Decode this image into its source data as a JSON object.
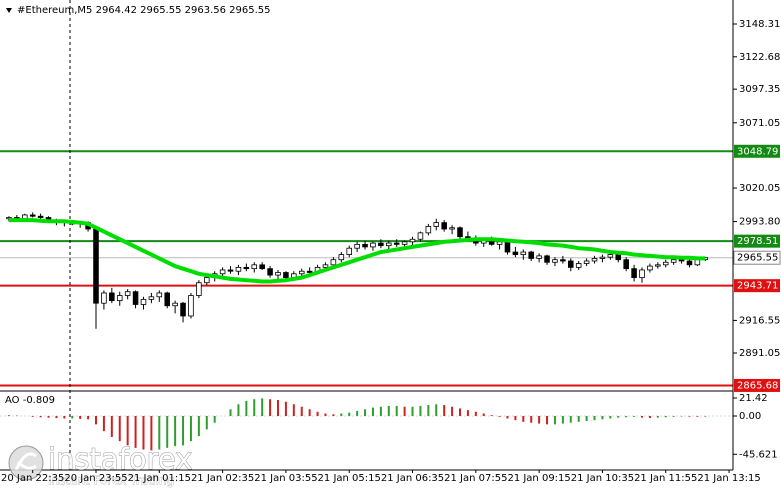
{
  "chart_data": {
    "type": "candlestick",
    "title": "#Ethereum,M5  2964.42 2965.55 2963.56 2965.55",
    "categories": [
      null,
      null,
      null,
      "20 Jan 22:35",
      null,
      null,
      null,
      null,
      null,
      null,
      null,
      "20 Jan 23:55",
      null,
      null,
      null,
      null,
      null,
      null,
      null,
      "21 Jan 01:15",
      null,
      null,
      null,
      null,
      null,
      null,
      null,
      "21 Jan 02:35",
      null,
      null,
      null,
      null,
      null,
      null,
      null,
      "21 Jan 03:55",
      null,
      null,
      null,
      null,
      null,
      null,
      null,
      "21 Jan 05:15",
      null,
      null,
      null,
      null,
      null,
      null,
      null,
      "21 Jan 06:35",
      null,
      null,
      null,
      null,
      null,
      null,
      null,
      "21 Jan 07:55",
      null,
      null,
      null,
      null,
      null,
      null,
      null,
      "21 Jan 09:15",
      null,
      null,
      null,
      null,
      null,
      null,
      null,
      "21 Jan 10:35",
      null,
      null,
      null,
      null,
      null,
      null,
      null,
      "21 Jan 11:55",
      null,
      null,
      null,
      null,
      null,
      null,
      null,
      "21 Jan 13:15"
    ],
    "ohlc": [
      [
        2996,
        2998,
        2994,
        2997
      ],
      [
        2997,
        2999,
        2995,
        2996
      ],
      [
        2996,
        3000,
        2995,
        2999
      ],
      [
        2999,
        3001,
        2997,
        2998
      ],
      [
        2998,
        3000,
        2996,
        2997
      ],
      [
        2997,
        2998,
        2993,
        2994
      ],
      [
        2994,
        2996,
        2991,
        2993
      ],
      [
        2993,
        2995,
        2990,
        2994
      ],
      [
        2994,
        2995,
        2991,
        2992
      ],
      [
        2992,
        2994,
        2989,
        2993
      ],
      [
        2993,
        2994,
        2986,
        2988
      ],
      [
        2988,
        2989,
        2910,
        2930
      ],
      [
        2930,
        2940,
        2925,
        2938
      ],
      [
        2938,
        2942,
        2930,
        2932
      ],
      [
        2932,
        2939,
        2928,
        2936
      ],
      [
        2936,
        2941,
        2933,
        2939
      ],
      [
        2939,
        2940,
        2926,
        2929
      ],
      [
        2929,
        2935,
        2925,
        2933
      ],
      [
        2933,
        2938,
        2930,
        2935
      ],
      [
        2935,
        2940,
        2931,
        2938
      ],
      [
        2938,
        2939,
        2926,
        2928
      ],
      [
        2928,
        2932,
        2922,
        2930
      ],
      [
        2930,
        2931,
        2915,
        2920
      ],
      [
        2920,
        2938,
        2918,
        2936
      ],
      [
        2936,
        2948,
        2934,
        2946
      ],
      [
        2946,
        2952,
        2944,
        2950
      ],
      [
        2950,
        2955,
        2947,
        2953
      ],
      [
        2953,
        2958,
        2950,
        2956
      ],
      [
        2956,
        2959,
        2953,
        2955
      ],
      [
        2955,
        2960,
        2952,
        2958
      ],
      [
        2958,
        2961,
        2955,
        2957
      ],
      [
        2957,
        2962,
        2954,
        2960
      ],
      [
        2960,
        2962,
        2956,
        2957
      ],
      [
        2957,
        2959,
        2950,
        2952
      ],
      [
        2952,
        2956,
        2948,
        2954
      ],
      [
        2954,
        2955,
        2947,
        2950
      ],
      [
        2950,
        2955,
        2948,
        2953
      ],
      [
        2953,
        2957,
        2951,
        2955
      ],
      [
        2955,
        2958,
        2952,
        2954
      ],
      [
        2954,
        2960,
        2953,
        2958
      ],
      [
        2958,
        2962,
        2955,
        2960
      ],
      [
        2960,
        2966,
        2958,
        2964
      ],
      [
        2964,
        2970,
        2962,
        2968
      ],
      [
        2968,
        2975,
        2966,
        2973
      ],
      [
        2973,
        2978,
        2970,
        2976
      ],
      [
        2976,
        2979,
        2972,
        2974
      ],
      [
        2974,
        2978,
        2971,
        2977
      ],
      [
        2977,
        2980,
        2973,
        2975
      ],
      [
        2975,
        2979,
        2972,
        2977
      ],
      [
        2977,
        2980,
        2974,
        2976
      ],
      [
        2976,
        2979,
        2973,
        2978
      ],
      [
        2978,
        2982,
        2975,
        2980
      ],
      [
        2980,
        2986,
        2978,
        2985
      ],
      [
        2985,
        2992,
        2983,
        2990
      ],
      [
        2990,
        2996,
        2987,
        2993
      ],
      [
        2993,
        2995,
        2986,
        2988
      ],
      [
        2988,
        2991,
        2984,
        2989
      ],
      [
        2989,
        2990,
        2980,
        2982
      ],
      [
        2982,
        2986,
        2978,
        2980
      ],
      [
        2980,
        2983,
        2975,
        2977
      ],
      [
        2977,
        2981,
        2974,
        2979
      ],
      [
        2979,
        2982,
        2975,
        2976
      ],
      [
        2976,
        2980,
        2972,
        2978
      ],
      [
        2978,
        2980,
        2968,
        2970
      ],
      [
        2970,
        2974,
        2966,
        2968
      ],
      [
        2968,
        2972,
        2964,
        2970
      ],
      [
        2970,
        2971,
        2963,
        2965
      ],
      [
        2965,
        2969,
        2962,
        2967
      ],
      [
        2967,
        2968,
        2960,
        2962
      ],
      [
        2962,
        2966,
        2959,
        2964
      ],
      [
        2964,
        2967,
        2961,
        2963
      ],
      [
        2963,
        2965,
        2955,
        2958
      ],
      [
        2958,
        2963,
        2956,
        2961
      ],
      [
        2961,
        2965,
        2959,
        2963
      ],
      [
        2963,
        2967,
        2961,
        2965
      ],
      [
        2965,
        2968,
        2962,
        2966
      ],
      [
        2966,
        2970,
        2964,
        2968
      ],
      [
        2968,
        2970,
        2962,
        2964
      ],
      [
        2964,
        2966,
        2955,
        2957
      ],
      [
        2957,
        2960,
        2947,
        2950
      ],
      [
        2950,
        2958,
        2946,
        2956
      ],
      [
        2956,
        2961,
        2954,
        2959
      ],
      [
        2959,
        2962,
        2957,
        2960
      ],
      [
        2960,
        2964,
        2958,
        2962
      ],
      [
        2962,
        2966,
        2960,
        2964
      ],
      [
        2964,
        2967,
        2961,
        2963
      ],
      [
        2963,
        2965,
        2958,
        2960
      ],
      [
        2960,
        2966,
        2959,
        2964
      ],
      [
        2964,
        2966,
        2963,
        2965.55
      ],
      null,
      null,
      null
    ],
    "up_color": "#ffffff",
    "down_color": "#000000",
    "ylim": [
      2862.12,
      3167.08
    ],
    "yticks": [
      3148.31,
      3122.68,
      3097.35,
      3071.05,
      3020.05,
      {
        "value": 2993.8,
        "label": "2993.80"
      },
      2916.55,
      2891.05
    ],
    "levels": [
      {
        "value": 3048.79,
        "color": "#138a13"
      },
      {
        "value": 2978.51,
        "color": "#138a13"
      },
      {
        "value": 2943.71,
        "color": "#e01010"
      },
      {
        "value": 2865.68,
        "color": "#e01010"
      }
    ],
    "current_price": 2965.55,
    "ma": {
      "color": "#00dd00",
      "values": [
        2995,
        2995,
        2995,
        2995,
        2994.5,
        2994,
        2994,
        2994,
        2993.5,
        2993,
        2992,
        2989,
        2986,
        2983,
        2980,
        2977,
        2974,
        2971,
        2968,
        2965,
        2962,
        2959,
        2957,
        2955,
        2953,
        2952,
        2951,
        2950,
        2949,
        2948.5,
        2948,
        2947.5,
        2947,
        2947,
        2947.5,
        2948,
        2949,
        2950,
        2952,
        2954,
        2956,
        2958,
        2960,
        2962,
        2964,
        2966,
        2968,
        2970,
        2971,
        2972,
        2973,
        2974,
        2975,
        2976,
        2977,
        2978,
        2978.5,
        2979,
        2979.5,
        2980,
        2980,
        2980,
        2979.5,
        2979,
        2978.5,
        2978,
        2977.5,
        2977,
        2976,
        2975.5,
        2975,
        2974,
        2973,
        2972.5,
        2972,
        2971,
        2970,
        2969.5,
        2969,
        2968,
        2967.5,
        2967,
        2966.5,
        2966,
        2966,
        2965.5,
        2965.5,
        2965,
        2965,
        null,
        null,
        null
      ]
    },
    "ao": {
      "title": "AO -0.809",
      "ylim": [
        -62,
        27.4
      ],
      "yticks": [
        21.42,
        {
          "value": 0,
          "label": "0.00"
        },
        -45.621
      ],
      "up_color": "#2e9e2e",
      "down_color": "#d02020",
      "values": [
        1,
        0.5,
        0,
        -1,
        -1.5,
        -2,
        -2.5,
        -3,
        -3,
        -3.5,
        -4,
        -10,
        -18,
        -25,
        -30,
        -35,
        -38,
        -40,
        -41,
        -40,
        -38,
        -36,
        -35,
        -30,
        -24,
        -16,
        -8,
        0,
        8,
        14,
        18,
        20,
        21,
        20,
        19,
        17,
        14,
        11,
        8,
        5,
        3,
        2,
        3,
        4,
        6,
        8,
        10,
        11,
        12,
        12,
        11,
        11,
        12,
        13,
        14,
        13,
        11,
        9,
        7,
        5,
        3,
        1,
        -1,
        -3,
        -5,
        -7,
        -8,
        -9,
        -10,
        -10,
        -9,
        -8,
        -7,
        -6,
        -5,
        -4,
        -3,
        -2,
        -1.5,
        -1,
        -2,
        -2.5,
        -2,
        -1.5,
        -1,
        -0.5,
        -0.8,
        -0.9,
        -0.809,
        null,
        null,
        null
      ]
    }
  },
  "watermark": {
    "brand": "instaforex",
    "tagline": "Instant Forex Trading"
  }
}
